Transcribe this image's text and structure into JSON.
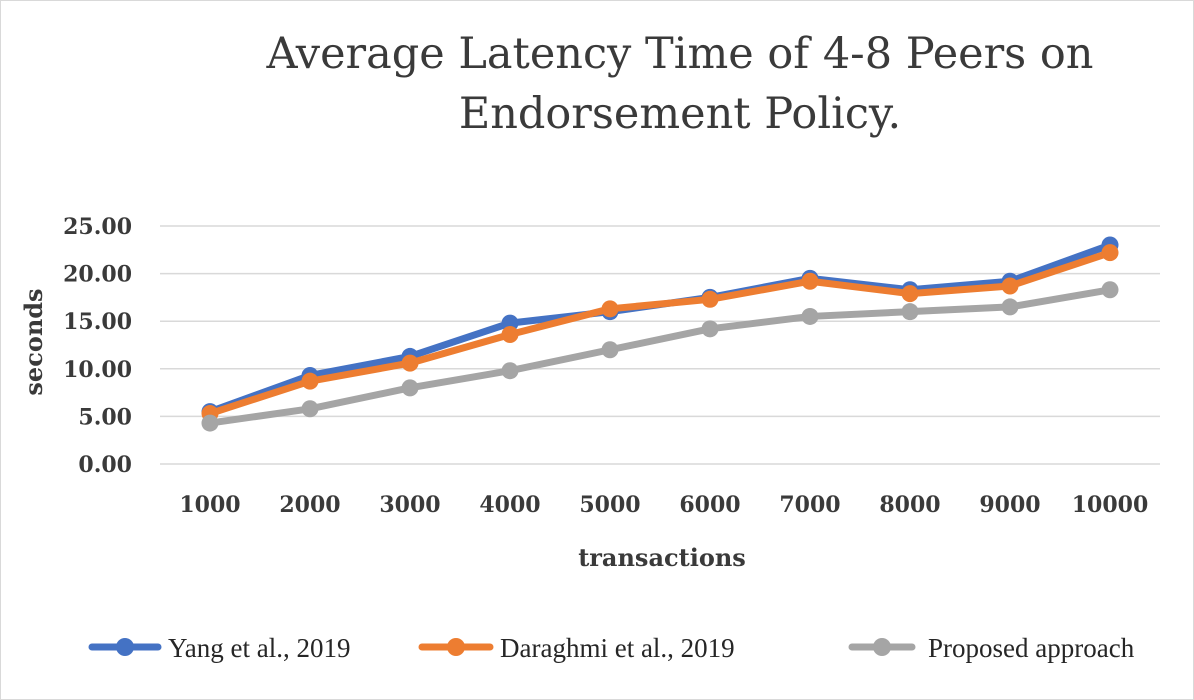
{
  "chart_data": {
    "type": "line",
    "title_lines": [
      "Average Latency Time of 4-8 Peers on",
      "Endorsement Policy."
    ],
    "xlabel": "transactions",
    "ylabel": "seconds",
    "categories": [
      "1000",
      "2000",
      "3000",
      "4000",
      "5000",
      "6000",
      "7000",
      "8000",
      "9000",
      "10000"
    ],
    "ylim": [
      0,
      25
    ],
    "yticks": [
      "0.00",
      "5.00",
      "10.00",
      "15.00",
      "20.00",
      "25.00"
    ],
    "grid": true,
    "legend_position": "bottom",
    "series": [
      {
        "name": "Yang et al., 2019",
        "color": "#4472c4",
        "values": [
          5.5,
          9.3,
          11.3,
          14.8,
          16.0,
          17.5,
          19.5,
          18.3,
          19.2,
          23.0
        ]
      },
      {
        "name": "Daraghmi et al., 2019",
        "color": "#ed7d31",
        "values": [
          5.3,
          8.7,
          10.6,
          13.6,
          16.3,
          17.3,
          19.2,
          17.9,
          18.7,
          22.2
        ]
      },
      {
        "name": "Proposed approach",
        "color": "#a5a5a5",
        "values": [
          4.3,
          5.8,
          8.0,
          9.8,
          12.0,
          14.2,
          15.5,
          16.0,
          16.5,
          18.3
        ]
      }
    ]
  }
}
